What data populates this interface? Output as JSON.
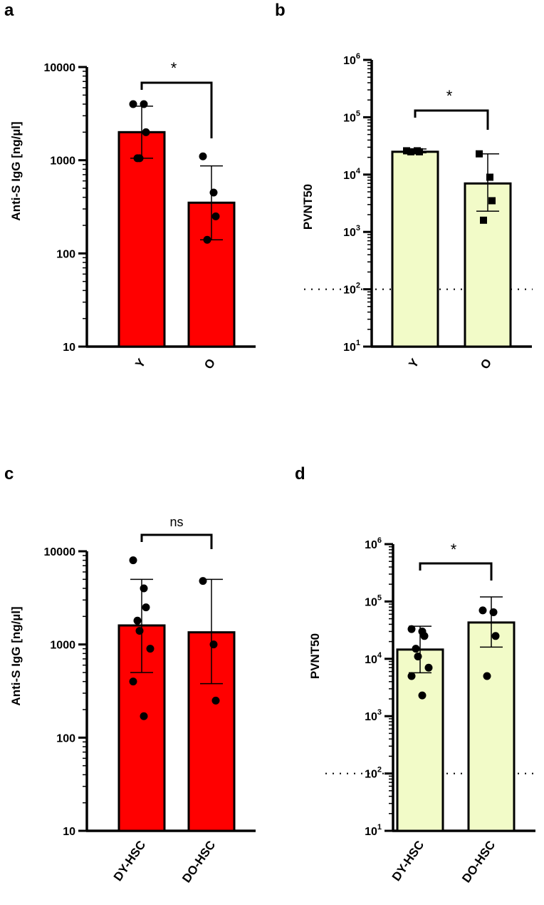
{
  "chart_data": [
    {
      "panel": "a",
      "type": "bar",
      "scale": "log",
      "ylabel": "Anti-S IgG [ng/µl]",
      "ylim": [
        10,
        10000
      ],
      "yticks": [
        10,
        100,
        1000,
        10000
      ],
      "ytick_labels": [
        "10",
        "100",
        "1000",
        "10000"
      ],
      "categories": [
        "Y",
        "O"
      ],
      "bar_color": "#ff0000",
      "values": [
        2000,
        350
      ],
      "error_high": [
        3800,
        870
      ],
      "error_low": [
        1050,
        140
      ],
      "points": [
        [
          4000,
          4000,
          2000,
          1050,
          1050
        ],
        [
          1100,
          450,
          250,
          140
        ]
      ],
      "marker": "circle",
      "significance": "*",
      "reference_line": null
    },
    {
      "panel": "b",
      "type": "bar",
      "scale": "log",
      "ylabel": "PVNT50",
      "ylim": [
        10,
        1000000
      ],
      "yticks": [
        10,
        100,
        1000,
        10000,
        100000,
        1000000
      ],
      "ytick_labels": [
        {
          "base": "10",
          "exp": "1"
        },
        {
          "base": "10",
          "exp": "2"
        },
        {
          "base": "10",
          "exp": "3"
        },
        {
          "base": "10",
          "exp": "4"
        },
        {
          "base": "10",
          "exp": "5"
        },
        {
          "base": "10",
          "exp": "6"
        }
      ],
      "categories": [
        "Y",
        "O"
      ],
      "bar_color": "#f2fbc8",
      "values": [
        25000,
        7000
      ],
      "error_high": [
        28000,
        23000
      ],
      "error_low": [
        24000,
        2300
      ],
      "points": [
        [
          26000,
          26000,
          25000,
          25000
        ],
        [
          23000,
          9000,
          3500,
          1600
        ]
      ],
      "marker": "square",
      "significance": "*",
      "reference_line": 100
    },
    {
      "panel": "c",
      "type": "bar",
      "scale": "log",
      "ylabel": "Anti-S IgG [ng/µl]",
      "ylim": [
        10,
        10000
      ],
      "yticks": [
        10,
        100,
        1000,
        10000
      ],
      "ytick_labels": [
        "10",
        "100",
        "1000",
        "10000"
      ],
      "categories": [
        "DY-HSC",
        "DO-HSC"
      ],
      "bar_color": "#ff0000",
      "values": [
        1600,
        1350
      ],
      "error_high": [
        5000,
        5000
      ],
      "error_low": [
        500,
        380
      ],
      "points": [
        [
          8000,
          4000,
          2500,
          1800,
          1400,
          900,
          400,
          170
        ],
        [
          4800,
          1000,
          250
        ]
      ],
      "marker": "circle",
      "significance": "ns",
      "reference_line": null
    },
    {
      "panel": "d",
      "type": "bar",
      "scale": "log",
      "ylabel": "PVNT50",
      "ylim": [
        10,
        1000000
      ],
      "yticks": [
        10,
        100,
        1000,
        10000,
        100000,
        1000000
      ],
      "ytick_labels": [
        {
          "base": "10",
          "exp": "1"
        },
        {
          "base": "10",
          "exp": "2"
        },
        {
          "base": "10",
          "exp": "3"
        },
        {
          "base": "10",
          "exp": "4"
        },
        {
          "base": "10",
          "exp": "5"
        },
        {
          "base": "10",
          "exp": "6"
        }
      ],
      "categories": [
        "DY-HSC",
        "DO-HSC"
      ],
      "bar_color": "#f2fbc8",
      "values": [
        14500,
        43000
      ],
      "error_high": [
        37000,
        120000
      ],
      "error_low": [
        5700,
        16000
      ],
      "points": [
        [
          33000,
          30000,
          25000,
          15000,
          11000,
          7000,
          5000,
          2300
        ],
        [
          70000,
          65000,
          25000,
          5000
        ]
      ],
      "marker": "circle",
      "significance": "*",
      "reference_line": 100
    }
  ]
}
